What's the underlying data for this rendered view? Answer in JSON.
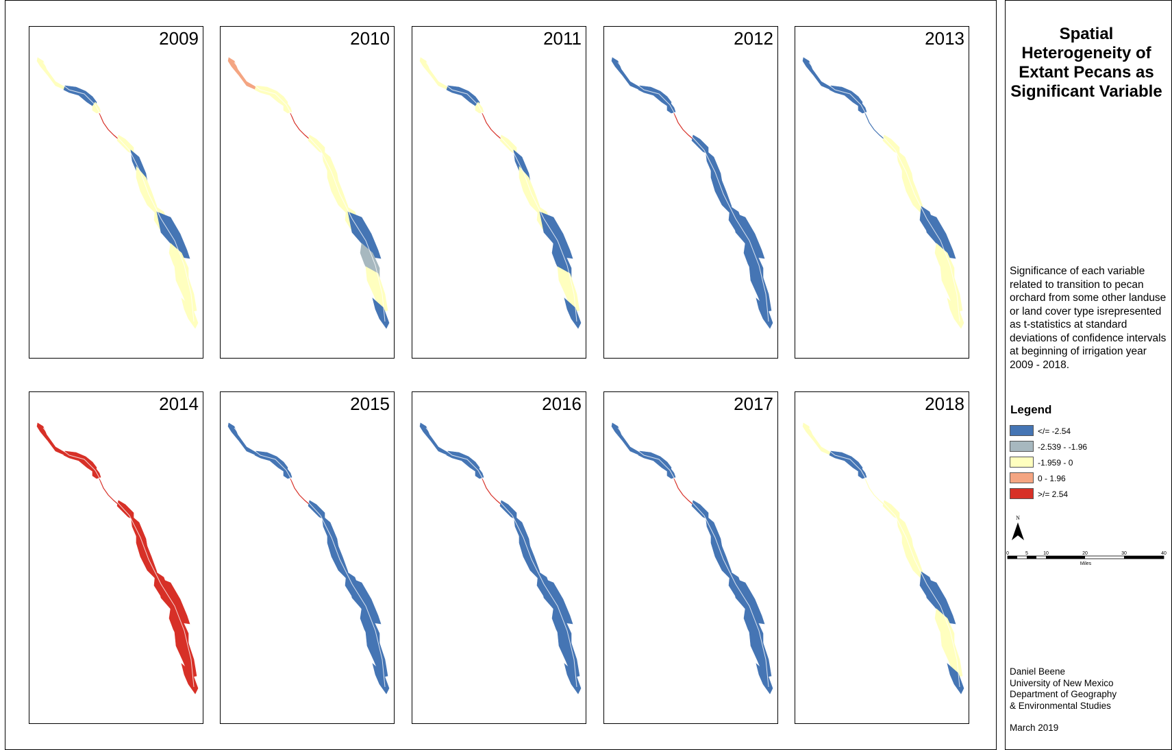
{
  "title": "Spatial Heterogeneity of Extant Pecans as Significant Variable",
  "description": "Significance of each variable related to transition to pecan orchard from some other landuse or land cover type isrepresented as t-statistics at standard deviations of confidence intervals at beginning of irrigation year 2009 - 2018.",
  "legend": {
    "heading": "Legend",
    "items": [
      {
        "label": "</= -2.54",
        "color": "#4575b4"
      },
      {
        "label": "-2.539 - -1.96",
        "color": "#a7b8bf"
      },
      {
        "label": "-1.959 - 0",
        "color": "#ffffbf"
      },
      {
        "label": "0 - 1.96",
        "color": "#f4a582"
      },
      {
        "label": ">/= 2.54",
        "color": "#d73027"
      }
    ]
  },
  "north_arrow": {
    "label": "N"
  },
  "scale_bar": {
    "ticks": [
      "0",
      "5",
      "10",
      "20",
      "30",
      "40"
    ],
    "unit": "Miles"
  },
  "credits": [
    "Daniel Beene",
    "University of New Mexico",
    "Department of Geography",
    "& Environmental Studies"
  ],
  "date": "March 2019",
  "panels": [
    {
      "year": "2009",
      "classes": [
        "-1.959 - 0",
        "</= -2.54",
        "-1.959 - 0",
        ">/= 2.54",
        "-1.959 - 0",
        "</= -2.54",
        "-1.959 - 0",
        "-1.959 - 0",
        "</= -2.54",
        "-1.959 - 0",
        "-1.959 - 0",
        "-1.959 - 0"
      ]
    },
    {
      "year": "2010",
      "classes": [
        "0 - 1.96",
        "-1.959 - 0",
        "-1.959 - 0",
        ">/= 2.54",
        "-1.959 - 0",
        "-1.959 - 0",
        "-1.959 - 0",
        "-1.959 - 0",
        "</= -2.54",
        "-2.539 - -1.96",
        "-1.959 - 0",
        "</= -2.54"
      ]
    },
    {
      "year": "2011",
      "classes": [
        "-1.959 - 0",
        "</= -2.54",
        "-1.959 - 0",
        ">/= 2.54",
        "-1.959 - 0",
        "</= -2.54",
        "-1.959 - 0",
        "-1.959 - 0",
        "</= -2.54",
        "</= -2.54",
        "-1.959 - 0",
        "</= -2.54"
      ]
    },
    {
      "year": "2012",
      "classes": [
        "</= -2.54",
        "</= -2.54",
        "</= -2.54",
        ">/= 2.54",
        "</= -2.54",
        "</= -2.54",
        "</= -2.54",
        "</= -2.54",
        "</= -2.54",
        "</= -2.54",
        "</= -2.54",
        "</= -2.54"
      ]
    },
    {
      "year": "2013",
      "classes": [
        "</= -2.54",
        "</= -2.54",
        "</= -2.54",
        "</= -2.54",
        "-1.959 - 0",
        "-1.959 - 0",
        "-1.959 - 0",
        "</= -2.54",
        "</= -2.54",
        "-1.959 - 0",
        "-1.959 - 0",
        "-1.959 - 0"
      ]
    },
    {
      "year": "2014",
      "classes": [
        ">/= 2.54",
        ">/= 2.54",
        ">/= 2.54",
        ">/= 2.54",
        ">/= 2.54",
        ">/= 2.54",
        ">/= 2.54",
        ">/= 2.54",
        ">/= 2.54",
        ">/= 2.54",
        ">/= 2.54",
        ">/= 2.54"
      ]
    },
    {
      "year": "2015",
      "classes": [
        "</= -2.54",
        "</= -2.54",
        "</= -2.54",
        ">/= 2.54",
        "</= -2.54",
        "</= -2.54",
        "</= -2.54",
        "</= -2.54",
        "</= -2.54",
        "</= -2.54",
        "</= -2.54",
        "</= -2.54"
      ]
    },
    {
      "year": "2016",
      "classes": [
        "</= -2.54",
        "</= -2.54",
        "</= -2.54",
        ">/= 2.54",
        "</= -2.54",
        "</= -2.54",
        "</= -2.54",
        "</= -2.54",
        "</= -2.54",
        "</= -2.54",
        "</= -2.54",
        "</= -2.54"
      ]
    },
    {
      "year": "2017",
      "classes": [
        "</= -2.54",
        "</= -2.54",
        "</= -2.54",
        ">/= 2.54",
        "</= -2.54",
        "</= -2.54",
        "</= -2.54",
        "</= -2.54",
        "</= -2.54",
        "</= -2.54",
        "</= -2.54",
        "</= -2.54"
      ]
    },
    {
      "year": "2018",
      "classes": [
        "-1.959 - 0",
        "</= -2.54",
        "</= -2.54",
        "-1.959 - 0",
        "-1.959 - 0",
        "-1.959 - 0",
        "-1.959 - 0",
        "</= -2.54",
        "</= -2.54",
        "-1.959 - 0",
        "-1.959 - 0",
        "</= -2.54"
      ]
    }
  ]
}
